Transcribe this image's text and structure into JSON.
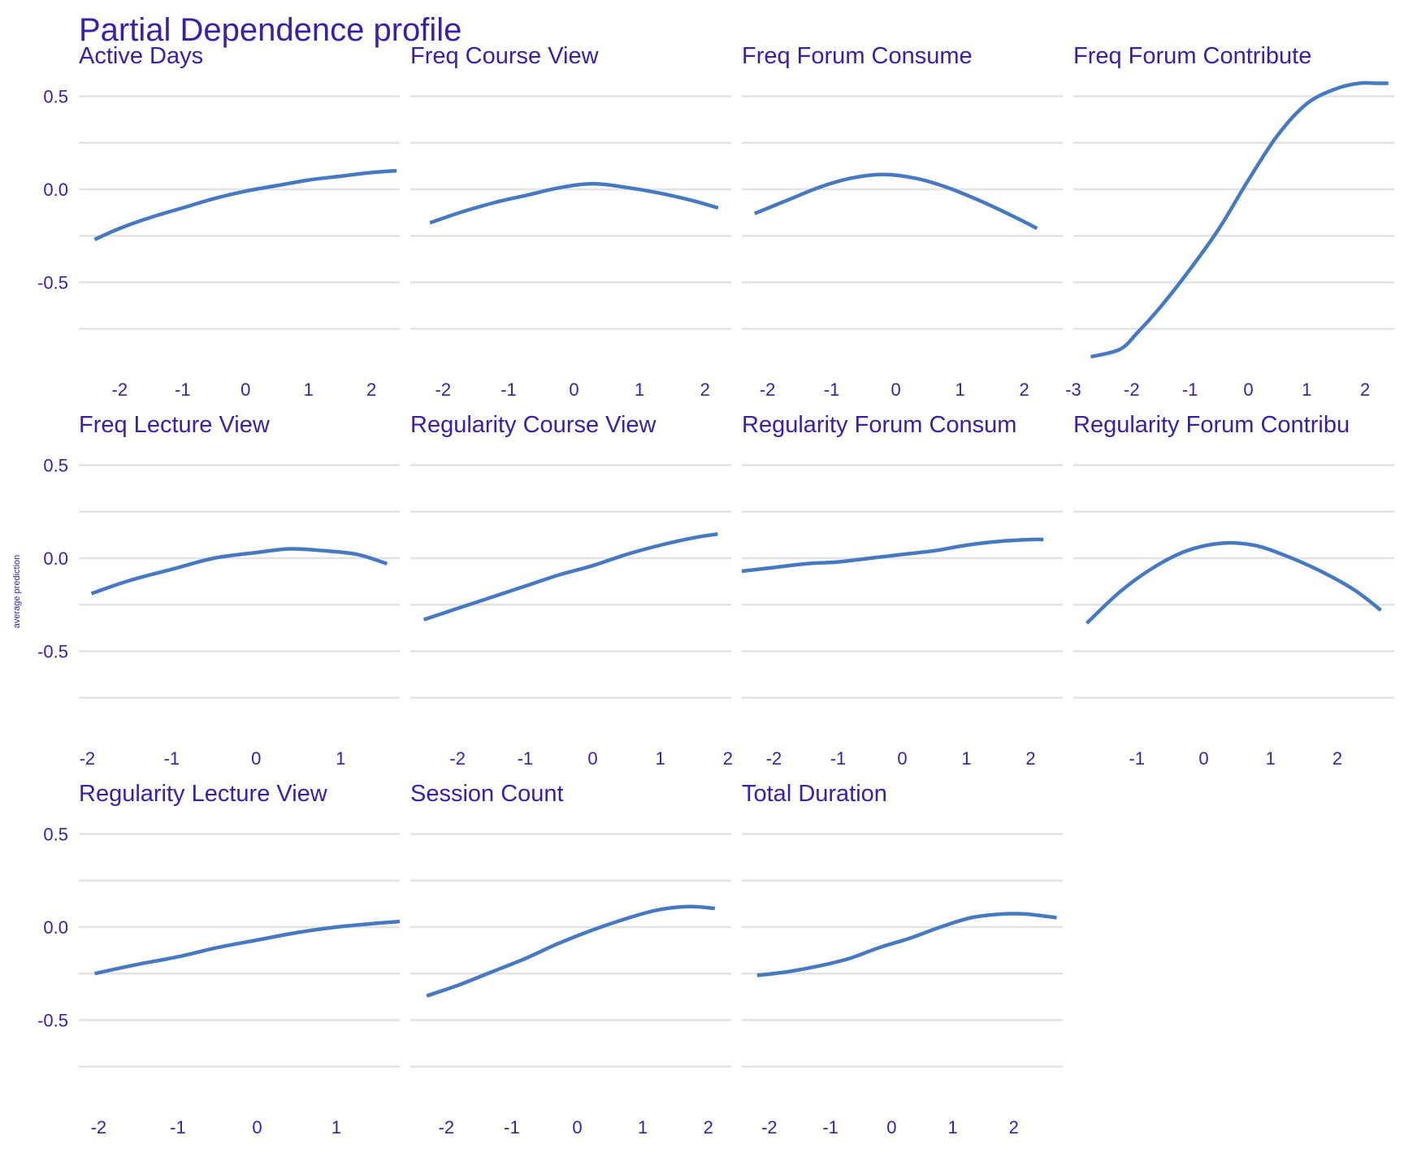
{
  "title": "Partial Dependence profile",
  "ylabel": "average prediction",
  "colors": {
    "text": "#3a20a8",
    "line": "#4679c0",
    "grid": "#e3e3e3",
    "background": "#ffffff"
  },
  "chart_data": {
    "type": "line",
    "title": "Partial Dependence profile",
    "ylabel": "average prediction",
    "xlabel": "",
    "ylim": [
      -0.95,
      0.6
    ],
    "y_ticks": [
      "0.5",
      "0.0",
      "-0.5"
    ],
    "grid": true,
    "legend": "none",
    "layout": "3 rows x 4 columns facet grid",
    "panels": [
      {
        "name": "Active  Days",
        "xlim": [
          -2.65,
          2.45
        ],
        "x_ticks": [
          "-2",
          "-1",
          "0",
          "1",
          "2"
        ],
        "x": [
          -2.4,
          -2,
          -1.5,
          -1,
          -0.5,
          0,
          0.5,
          1,
          1.5,
          2,
          2.4
        ],
        "y": [
          -0.27,
          -0.21,
          -0.15,
          -0.1,
          -0.05,
          -0.01,
          0.02,
          0.05,
          0.07,
          0.09,
          0.1
        ]
      },
      {
        "name": "Freq  Course  View",
        "xlim": [
          -2.5,
          2.4
        ],
        "x_ticks": [
          "-2",
          "-1",
          "0",
          "1",
          "2"
        ],
        "x": [
          -2.2,
          -1.7,
          -1.2,
          -0.7,
          -0.2,
          0.3,
          0.8,
          1.3,
          1.8,
          2.2
        ],
        "y": [
          -0.18,
          -0.12,
          -0.07,
          -0.03,
          0.01,
          0.03,
          0.01,
          -0.02,
          -0.06,
          -0.1
        ]
      },
      {
        "name": "Freq  Forum  Consume",
        "xlim": [
          -2.4,
          2.6
        ],
        "x_ticks": [
          "-2",
          "-1",
          "0",
          "1",
          "2"
        ],
        "x": [
          -2.2,
          -1.7,
          -1.2,
          -0.7,
          -0.2,
          0.3,
          0.8,
          1.3,
          1.8,
          2.2
        ],
        "y": [
          -0.13,
          -0.06,
          0.01,
          0.06,
          0.08,
          0.06,
          0.01,
          -0.06,
          -0.14,
          -0.21
        ]
      },
      {
        "name": "Freq  Forum  Contribute",
        "xlim": [
          -3.0,
          2.5
        ],
        "x_ticks": [
          "-3",
          "-2",
          "-1",
          "0",
          "1",
          "2"
        ],
        "x": [
          -2.7,
          -2.2,
          -1.9,
          -1.5,
          -1.0,
          -0.5,
          0.0,
          0.5,
          1.0,
          1.5,
          1.9,
          2.2,
          2.4
        ],
        "y": [
          -0.9,
          -0.86,
          -0.77,
          -0.63,
          -0.43,
          -0.21,
          0.05,
          0.29,
          0.46,
          0.54,
          0.57,
          0.57,
          0.57
        ]
      },
      {
        "name": "Freq  Lecture  View",
        "xlim": [
          -2.1,
          1.7
        ],
        "x_ticks": [
          "-2",
          "-1",
          "0",
          "1"
        ],
        "x": [
          -1.95,
          -1.5,
          -1.0,
          -0.5,
          0.0,
          0.4,
          0.8,
          1.2,
          1.55
        ],
        "y": [
          -0.19,
          -0.12,
          -0.06,
          0.0,
          0.03,
          0.05,
          0.04,
          0.02,
          -0.03
        ]
      },
      {
        "name": "Regularity  Course  View",
        "xlim": [
          -2.7,
          2.05
        ],
        "x_ticks": [
          "-2",
          "-1",
          "0",
          "1",
          "2"
        ],
        "x": [
          -2.5,
          -2.0,
          -1.5,
          -1.0,
          -0.5,
          0.0,
          0.5,
          1.0,
          1.5,
          1.85
        ],
        "y": [
          -0.33,
          -0.27,
          -0.21,
          -0.15,
          -0.09,
          -0.04,
          0.02,
          0.07,
          0.11,
          0.13
        ]
      },
      {
        "name": "Regularity  Forum  Consum",
        "xlim": [
          -2.5,
          2.5
        ],
        "x_ticks": [
          "-2",
          "-1",
          "0",
          "1",
          "2"
        ],
        "x": [
          -2.5,
          -2.0,
          -1.5,
          -1.0,
          -0.5,
          0.0,
          0.5,
          1.0,
          1.5,
          2.0,
          2.2
        ],
        "y": [
          -0.07,
          -0.05,
          -0.03,
          -0.02,
          0.0,
          0.02,
          0.04,
          0.07,
          0.09,
          0.1,
          0.1
        ]
      },
      {
        "name": "Regularity  Forum  Contribu",
        "xlim": [
          -1.95,
          2.85
        ],
        "x_ticks": [
          "-1",
          "0",
          "1",
          "2"
        ],
        "x": [
          -1.75,
          -1.25,
          -0.75,
          -0.25,
          0.25,
          0.75,
          1.25,
          1.75,
          2.25,
          2.65
        ],
        "y": [
          -0.35,
          -0.18,
          -0.05,
          0.04,
          0.08,
          0.07,
          0.01,
          -0.07,
          -0.17,
          -0.28
        ]
      },
      {
        "name": "Regularity  Lecture  View",
        "xlim": [
          -2.25,
          1.8
        ],
        "x_ticks": [
          "-2",
          "-1",
          "0",
          "1"
        ],
        "x": [
          -2.05,
          -1.5,
          -1.0,
          -0.5,
          0.0,
          0.5,
          1.0,
          1.5,
          1.8
        ],
        "y": [
          -0.25,
          -0.2,
          -0.16,
          -0.11,
          -0.07,
          -0.03,
          0.0,
          0.02,
          0.03
        ]
      },
      {
        "name": "Session  Count",
        "xlim": [
          -2.55,
          2.35
        ],
        "x_ticks": [
          "-2",
          "-1",
          "0",
          "1",
          "2"
        ],
        "x": [
          -2.3,
          -1.8,
          -1.3,
          -0.8,
          -0.3,
          0.2,
          0.7,
          1.2,
          1.7,
          2.1
        ],
        "y": [
          -0.37,
          -0.31,
          -0.24,
          -0.17,
          -0.09,
          -0.02,
          0.04,
          0.09,
          0.11,
          0.1
        ]
      },
      {
        "name": "Total  Duration",
        "xlim": [
          -2.45,
          2.8
        ],
        "x_ticks": [
          "-2",
          "-1",
          "0",
          "1",
          "2"
        ],
        "x": [
          -2.2,
          -1.7,
          -1.2,
          -0.7,
          -0.2,
          0.3,
          0.8,
          1.3,
          1.8,
          2.2,
          2.7
        ],
        "y": [
          -0.26,
          -0.24,
          -0.21,
          -0.17,
          -0.11,
          -0.06,
          0.0,
          0.05,
          0.07,
          0.07,
          0.05
        ]
      }
    ]
  }
}
